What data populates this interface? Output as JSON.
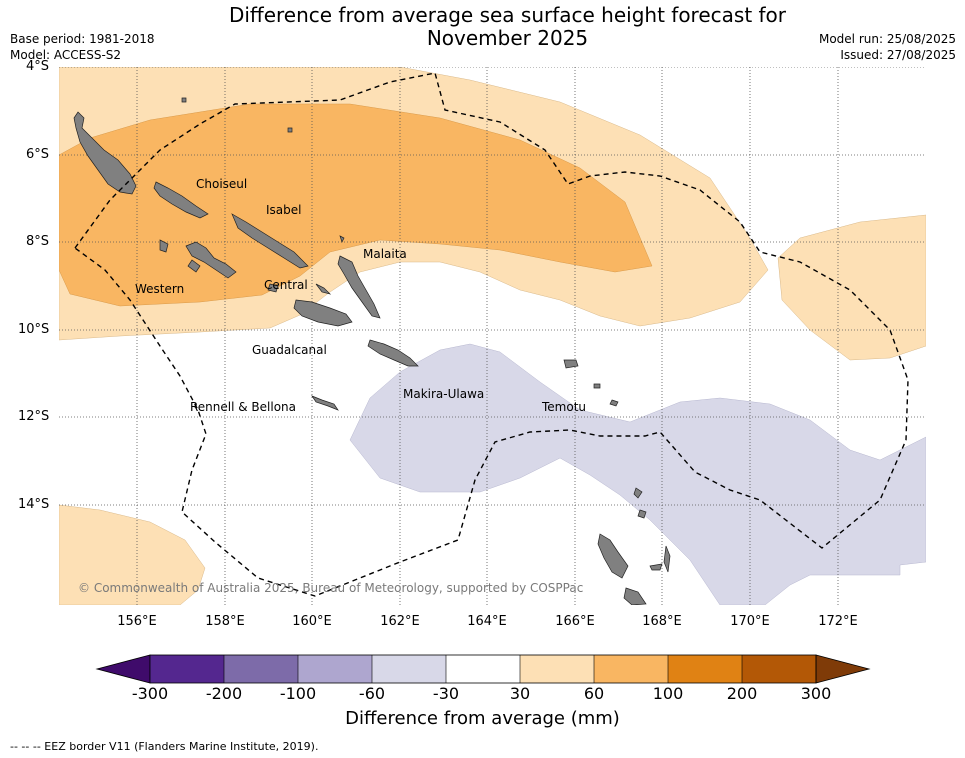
{
  "title": "Difference from average sea surface height forecast for November 2025",
  "title_line1": "Difference from average sea surface height forecast for",
  "title_line2": "November 2025",
  "meta_left": [
    "Base period: 1981-2018",
    "Model: ACCESS-S2"
  ],
  "meta_right": [
    "Model run: 25/08/2025",
    "Issued: 27/08/2025"
  ],
  "map": {
    "lat_ticks": [
      "4°S",
      "6°S",
      "8°S",
      "10°S",
      "12°S",
      "14°S"
    ],
    "lon_ticks": [
      "156°E",
      "158°E",
      "160°E",
      "162°E",
      "164°E",
      "166°E",
      "168°E",
      "170°E",
      "172°E"
    ],
    "regions": [
      "Choiseul",
      "Isabel",
      "Malaita",
      "Western",
      "Central",
      "Guadalcanal",
      "Rennell & Bellona",
      "Makira-Ulawa",
      "Temotu"
    ],
    "copyright": "© Commonwealth of Australia 2025, Bureau of Meteorology, supported by COSPPac",
    "grid": true
  },
  "colorbar": {
    "ticks": [
      "-300",
      "-200",
      "-100",
      "-60",
      "-30",
      "30",
      "60",
      "100",
      "200",
      "300"
    ],
    "colors": [
      "#3f0b6b",
      "#54278f",
      "#7d6ba9",
      "#aea6cf",
      "#d8d8e8",
      "#ffffff",
      "#fde0b5",
      "#f9b662",
      "#e08214",
      "#b35806",
      "#7f3b08"
    ],
    "label": "Difference from average (mm)"
  },
  "legend_note": "--  --  -- EEZ border V11 (Flanders Marine Institute, 2019).",
  "colors": {
    "land": "#808080",
    "grid": "#555555",
    "eez": "#000000"
  }
}
